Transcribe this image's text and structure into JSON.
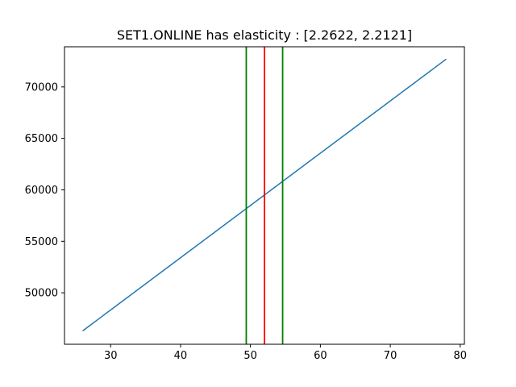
{
  "chart_data": {
    "type": "line",
    "title": "SET1.ONLINE has elasticity : [2.2622, 2.2121]",
    "xlabel": "",
    "ylabel": "",
    "xlim": [
      23.4,
      80.6
    ],
    "ylim": [
      45000,
      73900
    ],
    "grid": false,
    "x_ticks": [
      30,
      40,
      50,
      60,
      70,
      80
    ],
    "y_ticks": [
      50000,
      55000,
      60000,
      65000,
      70000
    ],
    "series": [
      {
        "color": "#1f77b4",
        "x": [
          26,
          78
        ],
        "y": [
          46300,
          72700
        ]
      }
    ],
    "vertical_lines": [
      {
        "x": 49.4,
        "color": "#008000"
      },
      {
        "x": 52.0,
        "color": "#ff0000"
      },
      {
        "x": 54.6,
        "color": "#008000"
      }
    ]
  }
}
